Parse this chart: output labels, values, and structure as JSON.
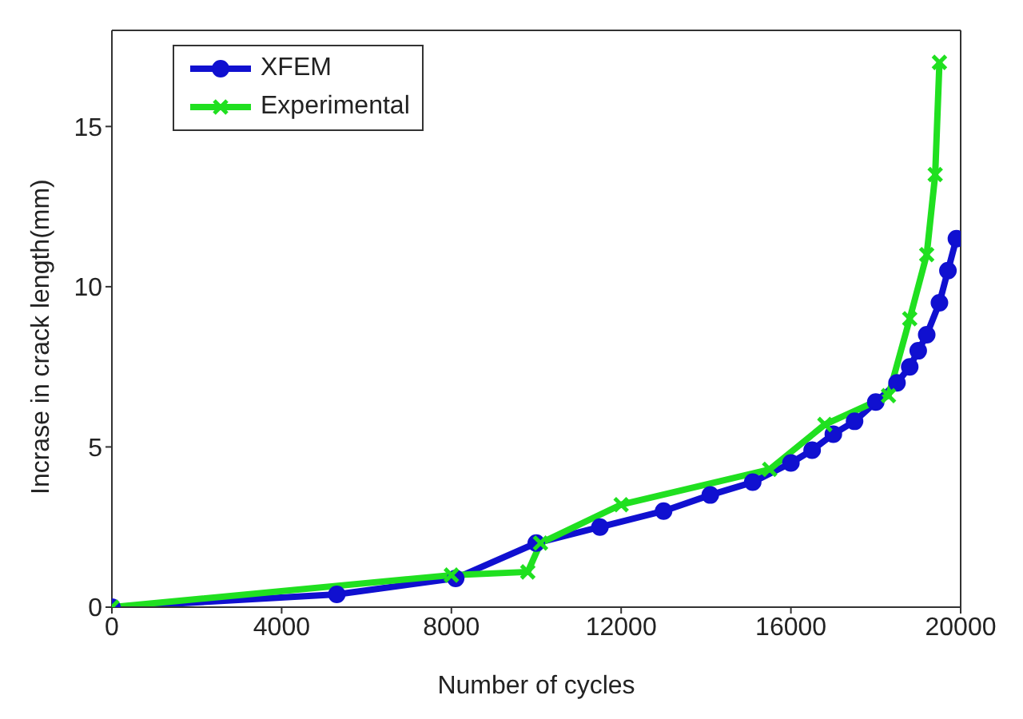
{
  "chart_data": {
    "type": "line",
    "xlabel": "Number of cycles",
    "ylabel": "Incrase in crack length(mm)",
    "xlim": [
      0,
      20000
    ],
    "xticks": [
      0,
      4000,
      8000,
      12000,
      16000,
      20000
    ],
    "ylim": [
      0,
      18
    ],
    "yticks": [
      0,
      5,
      10,
      15
    ],
    "legend": "top left",
    "grid": false,
    "series": [
      {
        "name": "XFEM",
        "color": "#1010d0",
        "marker": "circle",
        "x": [
          0,
          5300,
          8100,
          10000,
          11500,
          13000,
          14100,
          15100,
          16000,
          16500,
          17000,
          17500,
          18000,
          18500,
          18800,
          19000,
          19200,
          19500,
          19700,
          19900
        ],
        "values": [
          0,
          0.4,
          0.9,
          2.0,
          2.5,
          3.0,
          3.5,
          3.9,
          4.5,
          4.9,
          5.4,
          5.8,
          6.4,
          7.0,
          7.5,
          8.0,
          8.5,
          9.5,
          10.5,
          11.5
        ]
      },
      {
        "name": "Experimental",
        "color": "#20e020",
        "marker": "cross",
        "x": [
          0,
          8000,
          9800,
          10100,
          12000,
          15500,
          16800,
          18300,
          18800,
          19200,
          19400,
          19500
        ],
        "values": [
          0,
          1.0,
          1.1,
          2.0,
          3.2,
          4.3,
          5.7,
          6.6,
          9.0,
          11.0,
          13.5,
          17.0
        ]
      }
    ]
  }
}
